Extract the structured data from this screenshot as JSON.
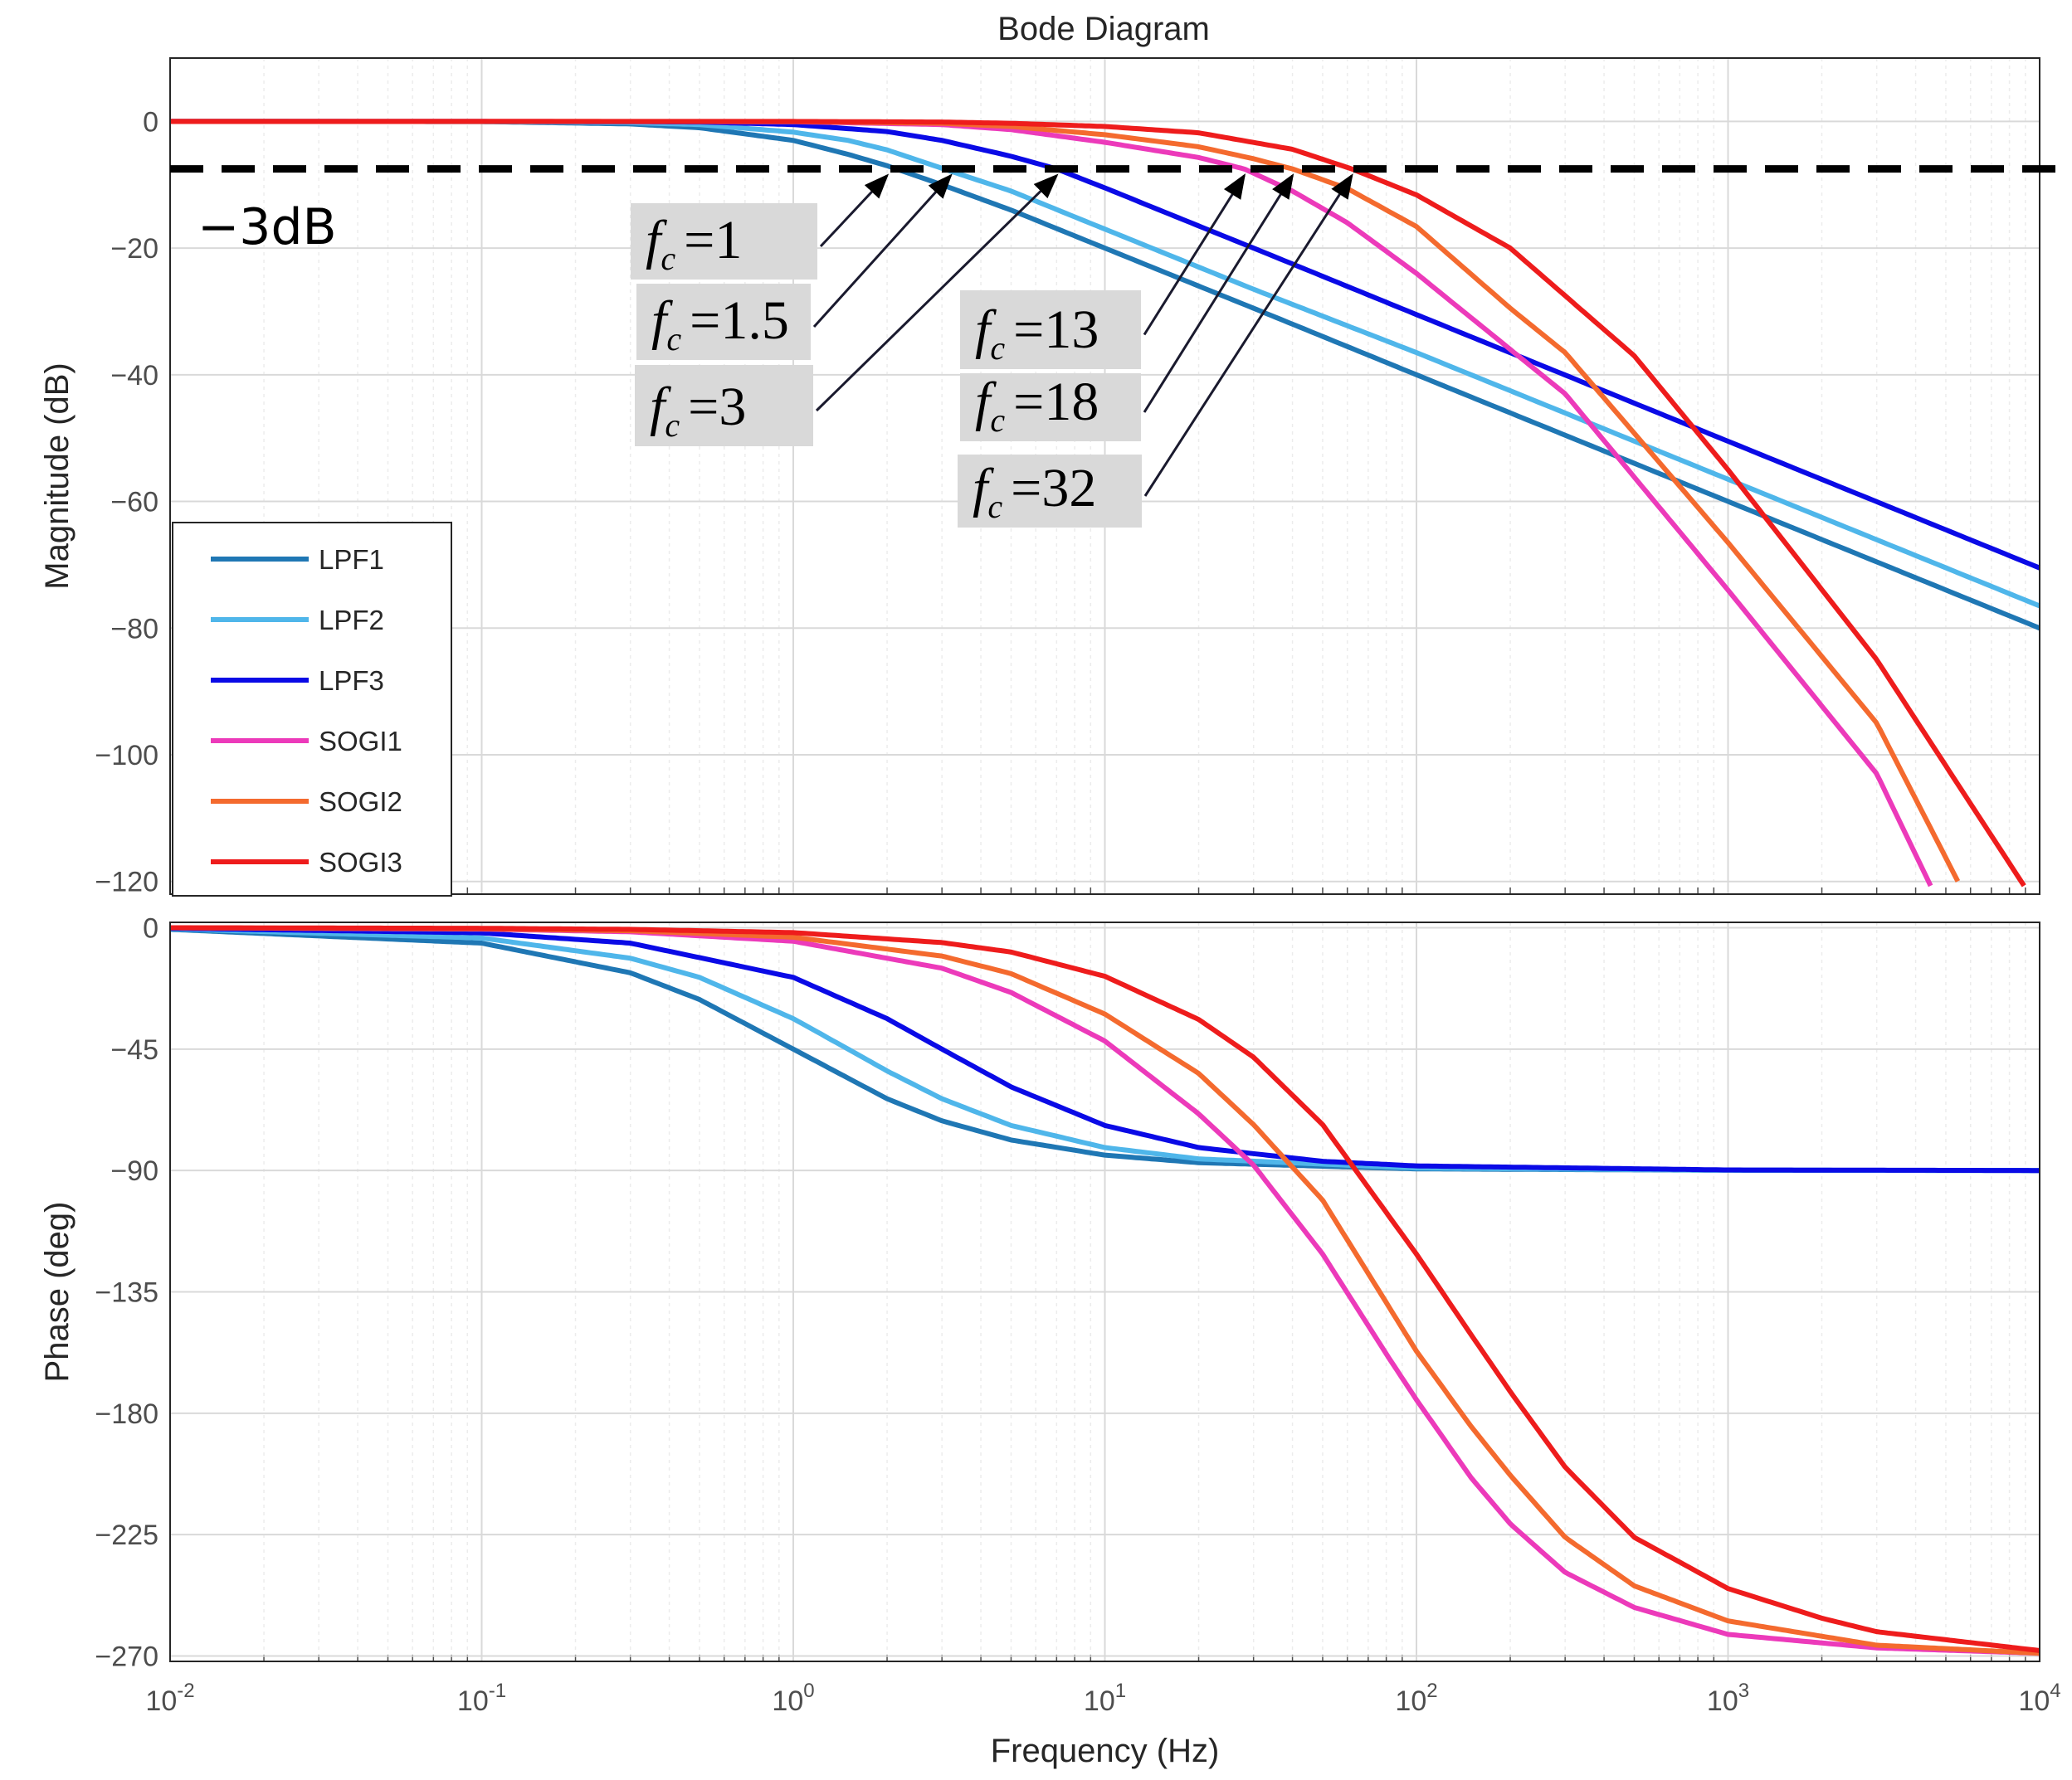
{
  "chart_data": [
    {
      "type": "line",
      "panel": "magnitude",
      "title": "Bode Diagram",
      "xlabel": "Frequency  (Hz)",
      "ylabel": "Magnitude (dB)",
      "xscale": "log",
      "xlim": [
        0.01,
        10000
      ],
      "ylim": [
        -122,
        10
      ],
      "yticks": [
        0,
        -20,
        -40,
        -60,
        -80,
        -100,
        -120
      ],
      "yticklabels": [
        "0",
        "−20",
        "−40",
        "−60",
        "−80",
        "−100",
        "−120"
      ],
      "grid": true,
      "reference_line": {
        "label": "−3dB",
        "value": -7.5,
        "style": "dashed",
        "color": "#000000"
      },
      "legend": {
        "position": "bottom-left",
        "entries": [
          "LPF1",
          "LPF2",
          "LPF3",
          "SOGI1",
          "SOGI2",
          "SOGI3"
        ]
      },
      "annotations": [
        {
          "lhs": "f",
          "sub": "c",
          "eq": "=1",
          "target_f": 2.0
        },
        {
          "lhs": "f",
          "sub": "c",
          "eq": "=1.5",
          "target_f": 3.2
        },
        {
          "lhs": "f",
          "sub": "c",
          "eq": "=3",
          "target_f": 7.0
        },
        {
          "lhs": "f",
          "sub": "c",
          "eq": "=13",
          "target_f": 28
        },
        {
          "lhs": "f",
          "sub": "c",
          "eq": "=18",
          "target_f": 40
        },
        {
          "lhs": "f",
          "sub": "c",
          "eq": "=32",
          "target_f": 62
        }
      ],
      "series": [
        {
          "name": "LPF1",
          "color": "#1f77b4",
          "x": [
            0.01,
            0.1,
            0.3,
            0.5,
            1,
            1.5,
            2,
            3,
            5,
            10,
            30,
            100,
            1000,
            10000
          ],
          "y": [
            0,
            -0.03,
            -0.4,
            -1,
            -3,
            -5.2,
            -7,
            -10,
            -14,
            -20,
            -29.5,
            -40,
            -60,
            -80
          ]
        },
        {
          "name": "LPF2",
          "color": "#4fb6ea",
          "x": [
            0.01,
            0.1,
            0.3,
            0.5,
            1,
            1.5,
            2,
            3,
            5,
            10,
            30,
            100,
            1000,
            10000
          ],
          "y": [
            0,
            -0.02,
            -0.2,
            -0.5,
            -1.7,
            -3,
            -4.5,
            -7.4,
            -11,
            -17,
            -26.5,
            -36.5,
            -56.5,
            -76.5
          ]
        },
        {
          "name": "LPF3",
          "color": "#0a0ae6",
          "x": [
            0.01,
            0.1,
            0.3,
            0.5,
            1,
            2,
            3,
            5,
            7,
            10,
            30,
            100,
            1000,
            10000
          ],
          "y": [
            0,
            -0.01,
            -0.05,
            -0.1,
            -0.5,
            -1.6,
            -3,
            -5.5,
            -7.5,
            -10.5,
            -20,
            -30.5,
            -50.5,
            -70.5
          ]
        },
        {
          "name": "SOGI1",
          "color": "#ec3aba",
          "x": [
            0.01,
            0.1,
            1,
            3,
            5,
            10,
            20,
            28,
            40,
            60,
            100,
            200,
            300,
            1000,
            3000,
            4500
          ],
          "y": [
            0,
            0,
            -0.05,
            -0.5,
            -1.3,
            -3.3,
            -5.7,
            -7.5,
            -11,
            -16,
            -24,
            -36,
            -43,
            -74,
            -103,
            -121
          ]
        },
        {
          "name": "SOGI2",
          "color": "#f46a2e",
          "x": [
            0.01,
            0.1,
            1,
            3,
            5,
            10,
            20,
            30,
            40,
            60,
            100,
            200,
            300,
            1000,
            3000,
            5600
          ],
          "y": [
            0,
            0,
            -0.03,
            -0.3,
            -0.8,
            -2.1,
            -4,
            -5.9,
            -7.5,
            -10.6,
            -16.6,
            -29.5,
            -36.5,
            -66.5,
            -95,
            -121
          ]
        },
        {
          "name": "SOGI3",
          "color": "#ee1c1c",
          "x": [
            0.01,
            0.1,
            1,
            3,
            5,
            10,
            20,
            40,
            62,
            100,
            200,
            500,
            1000,
            3000,
            9000
          ],
          "y": [
            0,
            0,
            -0.01,
            -0.1,
            -0.3,
            -0.8,
            -1.8,
            -4.4,
            -7.5,
            -11.6,
            -20,
            -37,
            -55,
            -85,
            -121
          ]
        }
      ]
    },
    {
      "type": "line",
      "panel": "phase",
      "xlabel": "Frequency  (Hz)",
      "ylabel": "Phase (deg)",
      "xscale": "log",
      "xlim": [
        0.01,
        10000
      ],
      "ylim": [
        -272,
        2
      ],
      "xticks": [
        0.01,
        0.1,
        1,
        10,
        100,
        1000,
        10000
      ],
      "xticklabels": [
        {
          "base": "10",
          "exp": "-2"
        },
        {
          "base": "10",
          "exp": "-1"
        },
        {
          "base": "10",
          "exp": "0"
        },
        {
          "base": "10",
          "exp": "1"
        },
        {
          "base": "10",
          "exp": "2"
        },
        {
          "base": "10",
          "exp": "3"
        },
        {
          "base": "10",
          "exp": "4"
        }
      ],
      "yticks": [
        0,
        -45,
        -90,
        -135,
        -180,
        -225,
        -270
      ],
      "yticklabels": [
        "0",
        "−45",
        "−90",
        "−135",
        "−180",
        "−225",
        "−270"
      ],
      "grid": true,
      "series": [
        {
          "name": "LPF1",
          "color": "#1f77b4",
          "x": [
            0.01,
            0.1,
            0.3,
            0.5,
            1,
            2,
            3,
            5,
            10,
            20,
            100,
            1000,
            10000
          ],
          "y": [
            -0.6,
            -5.7,
            -16.7,
            -26.6,
            -45,
            -63.4,
            -71.6,
            -78.7,
            -84.3,
            -87.1,
            -89.4,
            -89.9,
            -90
          ]
        },
        {
          "name": "LPF2",
          "color": "#4fb6ea",
          "x": [
            0.01,
            0.1,
            0.3,
            0.5,
            1,
            1.5,
            2,
            3,
            5,
            10,
            20,
            100,
            1000,
            10000
          ],
          "y": [
            -0.4,
            -3.8,
            -11.3,
            -18.4,
            -33.7,
            -45,
            -53.1,
            -63.4,
            -73.3,
            -81.5,
            -85.7,
            -89.1,
            -89.9,
            -90
          ]
        },
        {
          "name": "LPF3",
          "color": "#0a0ae6",
          "x": [
            0.01,
            0.1,
            0.3,
            1,
            2,
            3,
            5,
            10,
            20,
            50,
            100,
            1000,
            10000
          ],
          "y": [
            -0.2,
            -1.9,
            -5.7,
            -18.4,
            -33.7,
            -45,
            -59,
            -73.3,
            -81.5,
            -86.6,
            -88.3,
            -89.8,
            -90
          ]
        },
        {
          "name": "SOGI1",
          "color": "#ec3aba",
          "x": [
            0.01,
            0.1,
            0.3,
            1,
            3,
            5,
            10,
            20,
            30,
            50,
            80,
            100,
            150,
            200,
            300,
            500,
            1000,
            3000,
            10000
          ],
          "y": [
            0,
            -0.5,
            -1.5,
            -5,
            -15,
            -24,
            -42,
            -69,
            -88,
            -121,
            -158,
            -175,
            -204,
            -221,
            -239,
            -252,
            -262,
            -267,
            -269
          ]
        },
        {
          "name": "SOGI2",
          "color": "#f46a2e",
          "x": [
            0.01,
            0.1,
            0.3,
            1,
            3,
            5,
            10,
            20,
            30,
            50,
            100,
            150,
            200,
            300,
            500,
            1000,
            3000,
            10000
          ],
          "y": [
            0,
            -0.4,
            -1.1,
            -3.5,
            -10.5,
            -17,
            -32,
            -54,
            -73,
            -101,
            -157,
            -185,
            -203,
            -226,
            -244,
            -257,
            -266,
            -269
          ]
        },
        {
          "name": "SOGI3",
          "color": "#ee1c1c",
          "x": [
            0.01,
            0.1,
            0.3,
            1,
            3,
            5,
            10,
            20,
            30,
            50,
            100,
            150,
            200,
            300,
            500,
            1000,
            2000,
            3000,
            10000
          ],
          "y": [
            0,
            -0.2,
            -0.6,
            -1.8,
            -5.5,
            -9,
            -18,
            -34,
            -48,
            -73,
            -121,
            -151,
            -172,
            -200,
            -226,
            -245,
            -256,
            -261,
            -268
          ]
        }
      ]
    }
  ]
}
